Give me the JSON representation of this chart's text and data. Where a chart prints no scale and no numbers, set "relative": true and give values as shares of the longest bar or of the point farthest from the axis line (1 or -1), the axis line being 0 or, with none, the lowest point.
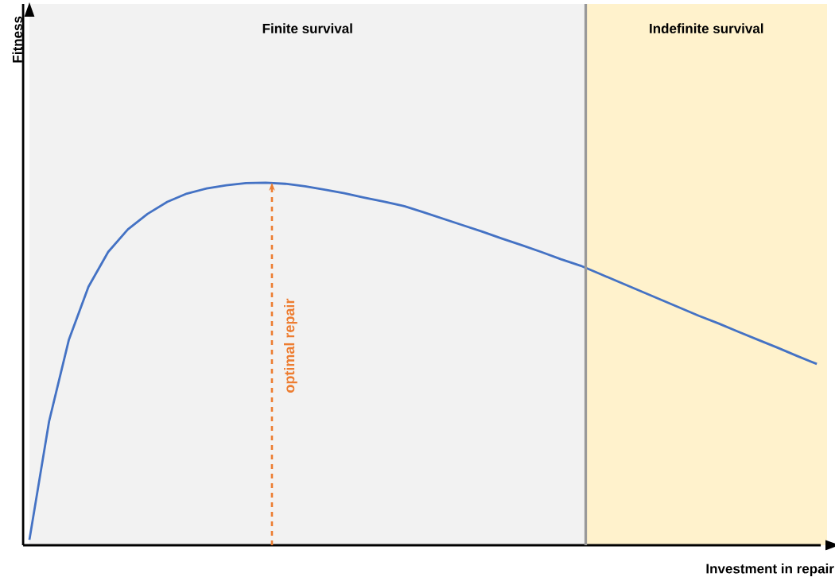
{
  "chart_data": {
    "type": "line",
    "relative": true,
    "xlabel": "Investment in repair",
    "categories": [
      null,
      null,
      null,
      null,
      null,
      null,
      null,
      null,
      null,
      null,
      null,
      null,
      null,
      null,
      null,
      null,
      null,
      null,
      null,
      null,
      null,
      null,
      null,
      null,
      null,
      null,
      null,
      null,
      null,
      null,
      null,
      null,
      null,
      null,
      null,
      null,
      null,
      null,
      null,
      null,
      null
    ],
    "series": [
      {
        "color": "#4472c4",
        "values": [
          0.015,
          0.342,
          0.566,
          0.713,
          0.809,
          0.871,
          0.914,
          0.947,
          0.97,
          0.984,
          0.993,
          0.999,
          1.0,
          0.997,
          0.99,
          0.981,
          0.971,
          0.959,
          0.948,
          0.936,
          0.919,
          0.901,
          0.883,
          0.865,
          0.846,
          0.828,
          0.809,
          0.789,
          0.771,
          0.748,
          0.725,
          0.702,
          0.679,
          0.656,
          0.633,
          0.612,
          0.589,
          0.567,
          0.545,
          0.522,
          0.5
        ]
      }
    ],
    "annotations": [
      "Finite survival",
      "Indefinite survival",
      "optimal repair",
      "Fitness"
    ]
  }
}
